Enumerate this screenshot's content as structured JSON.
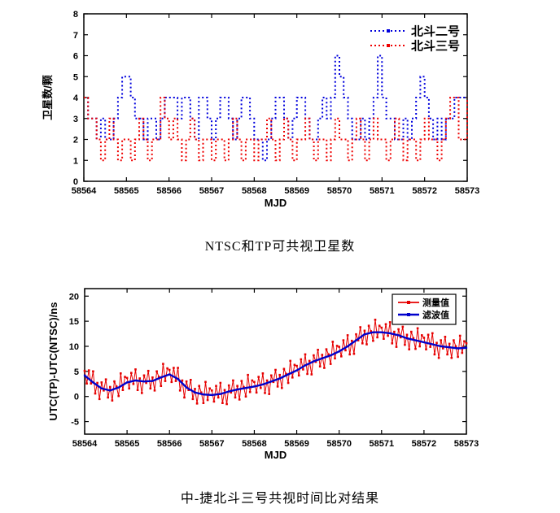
{
  "page": {
    "background": "#ffffff"
  },
  "captions": {
    "top_chart": "NTSC和TP可共视卫星数",
    "bottom_chart": "中-捷北斗三号共视时间比对结果"
  },
  "colors": {
    "beidou2_blue": "#0000DD",
    "beidou3_red": "#EE0000",
    "measured_red": "#E60000",
    "filtered_blue": "#0000CC",
    "axis": "#000000"
  },
  "chart_data": [
    {
      "type": "line",
      "subtype": "step-dotted",
      "title": "",
      "xlabel": "MJD",
      "ylabel": "卫星数/颗",
      "xlim": [
        58564,
        58573
      ],
      "ylim": [
        0,
        8
      ],
      "xticks": [
        58564,
        58565,
        58566,
        58567,
        58568,
        58569,
        58570,
        58571,
        58572,
        58573
      ],
      "yticks": [
        0,
        1,
        2,
        3,
        4,
        5,
        6,
        7,
        8
      ],
      "grid": false,
      "legend_position": "top-right",
      "legend_boxed": false,
      "series": [
        {
          "name": "北斗二号",
          "color": "#0000DD",
          "data_name": "beidou2-series",
          "x_start": 58564,
          "x_step": 0.1,
          "step": true,
          "dash": "2,3",
          "line_width": 2,
          "marker_size": 0,
          "values": [
            4,
            3,
            3,
            2,
            3,
            2,
            2,
            3,
            4,
            5,
            5,
            4,
            3,
            3,
            2,
            3,
            3,
            2,
            3,
            4,
            4,
            4,
            3,
            4,
            4,
            3,
            2,
            4,
            4,
            3,
            2,
            3,
            4,
            4,
            3,
            2,
            3,
            4,
            4,
            3,
            2,
            2,
            1,
            2,
            3,
            4,
            4,
            3,
            2,
            3,
            4,
            4,
            3,
            2,
            2,
            3,
            4,
            3,
            4,
            6,
            5,
            4,
            3,
            2,
            2,
            3,
            2,
            3,
            4,
            6,
            4,
            3,
            3,
            2,
            2,
            3,
            2,
            3,
            4,
            5,
            4,
            3,
            2,
            3,
            2,
            3,
            3,
            4,
            4,
            4,
            4
          ]
        },
        {
          "name": "北斗三号",
          "color": "#EE0000",
          "data_name": "beidou3-series",
          "x_start": 58564,
          "x_step": 0.1,
          "step": true,
          "dash": "2,3",
          "line_width": 2,
          "marker_size": 0,
          "values": [
            4,
            3,
            3,
            2,
            1,
            2,
            3,
            2,
            1,
            2,
            2,
            1,
            2,
            3,
            2,
            1,
            2,
            2,
            4,
            3,
            2,
            3,
            2,
            1,
            2,
            3,
            2,
            1,
            2,
            2,
            1,
            2,
            2,
            1,
            2,
            3,
            2,
            1,
            2,
            2,
            1,
            2,
            2,
            3,
            2,
            1,
            2,
            3,
            2,
            1,
            2,
            2,
            3,
            2,
            1,
            2,
            2,
            1,
            2,
            3,
            2,
            2,
            1,
            2,
            3,
            2,
            1,
            2,
            3,
            2,
            2,
            1,
            2,
            3,
            2,
            1,
            2,
            2,
            1,
            2,
            3,
            2,
            2,
            1,
            2,
            3,
            4,
            4,
            2,
            2,
            4
          ]
        }
      ]
    },
    {
      "type": "line",
      "title": "",
      "xlabel": "MJD",
      "ylabel": "UTC(TP)-UTC(NTSC)/ns",
      "xlim": [
        58564,
        58573
      ],
      "ylim": [
        -7.5,
        21.5
      ],
      "xticks": [
        58564,
        58565,
        58566,
        58567,
        58568,
        58569,
        58570,
        58571,
        58572,
        58573
      ],
      "yticks": [
        -5,
        0,
        5,
        10,
        15,
        20
      ],
      "grid": false,
      "legend_position": "top-right",
      "legend_boxed": true,
      "series": [
        {
          "name": "测量值",
          "color": "#E60000",
          "data_name": "measured-series",
          "x_start": 58564,
          "x_step": 0.05,
          "step": false,
          "dash": "",
          "line_width": 1,
          "marker_size": 2.6,
          "values": [
            5.1,
            2.6,
            5.2,
            2.6,
            5.0,
            0.6,
            2.7,
            -0.5,
            2.8,
            1.2,
            3.4,
            -0.2,
            1.9,
            -0.8,
            3.0,
            2.0,
            0.1,
            4.6,
            1.3,
            3.9,
            3.7,
            1.6,
            4.7,
            2.5,
            5.4,
            1.3,
            3.6,
            0.7,
            4.2,
            2.7,
            5.1,
            1.6,
            3.8,
            1.2,
            5.0,
            3.9,
            2.1,
            6.5,
            3.1,
            5.6,
            5.3,
            2.9,
            5.7,
            3.1,
            5.7,
            1.2,
            3.2,
            -0.2,
            3.0,
            1.3,
            3.3,
            -0.5,
            1.5,
            -1.4,
            2.1,
            0.8,
            -1.3,
            2.9,
            -0.7,
            1.6,
            1.2,
            -1.0,
            2.1,
            -0.2,
            2.7,
            -1.3,
            1.3,
            -1.5,
            2.2,
            0.8,
            3.2,
            -0.2,
            2.1,
            -0.6,
            3.1,
            1.9,
            0.0,
            4.3,
            0.9,
            3.2,
            2.9,
            0.8,
            3.9,
            1.7,
            4.6,
            0.7,
            3.2,
            0.5,
            4.2,
            2.9,
            5.3,
            2.0,
            4.3,
            1.7,
            5.5,
            4.5,
            2.7,
            7.1,
            3.8,
            6.3,
            6.1,
            4.2,
            7.4,
            5.4,
            8.4,
            4.5,
            7.1,
            4.4,
            8.2,
            6.9,
            9.3,
            6.0,
            8.3,
            5.7,
            9.4,
            8.4,
            6.5,
            10.9,
            7.6,
            10.1,
            9.9,
            8.0,
            11.2,
            9.2,
            12.2,
            8.4,
            11.1,
            8.5,
            12.4,
            11.2,
            13.8,
            10.6,
            13.1,
            10.4,
            14.1,
            13.0,
            11.1,
            15.3,
            11.8,
            14.1,
            13.7,
            11.5,
            14.4,
            12.1,
            14.8,
            10.6,
            12.9,
            9.9,
            13.4,
            11.8,
            13.9,
            10.3,
            12.3,
            9.4,
            12.9,
            11.6,
            9.5,
            13.6,
            10.0,
            12.2,
            11.7,
            9.4,
            12.3,
            9.9,
            12.6,
            8.4,
            10.7,
            7.7,
            11.2,
            9.6,
            11.9,
            8.4,
            10.5,
            7.7,
            11.2,
            10.0,
            7.9,
            12.1,
            8.7,
            11.0,
            10.6
          ]
        },
        {
          "name": "滤波值",
          "color": "#0000CC",
          "data_name": "filtered-series",
          "x_start": 58564,
          "x_step": 0.2,
          "step": false,
          "dash": "",
          "line_width": 2.4,
          "marker_size": 2.2,
          "values": [
            4.2,
            2.8,
            1.6,
            1.2,
            1.8,
            2.8,
            3.2,
            3.0,
            3.1,
            3.8,
            4.4,
            3.5,
            1.8,
            0.8,
            0.4,
            0.3,
            0.5,
            1.0,
            1.4,
            1.7,
            2.0,
            2.4,
            3.0,
            3.6,
            4.4,
            5.2,
            6.2,
            7.0,
            7.6,
            8.2,
            9.0,
            10.0,
            11.2,
            12.4,
            12.8,
            12.8,
            12.6,
            12.2,
            11.6,
            11.2,
            10.8,
            10.4,
            10.0,
            9.8,
            9.6,
            9.7
          ]
        }
      ]
    }
  ]
}
